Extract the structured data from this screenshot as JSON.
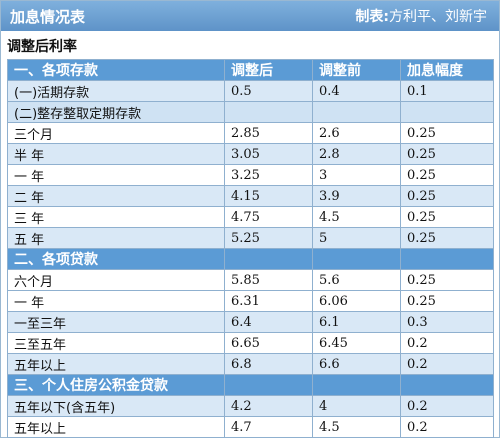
{
  "header": {
    "title": "加息情况表",
    "credit_label": "制表:",
    "credit_name": "方利平、刘新宇"
  },
  "heading": "调整后利率",
  "colors": {
    "header_bar": "#6aa1d4",
    "group_row": "#5b9bd5",
    "alt_row": "#d9e8f6",
    "border": "#8fb0cf"
  },
  "rows": [
    {
      "type": "head",
      "label": "一、各项存款",
      "after": "调整后",
      "before": "调整前",
      "delta": "加息幅度"
    },
    {
      "type": "alt",
      "label": "(一)活期存款",
      "after": "0.5",
      "before": "0.4",
      "delta": "0.1"
    },
    {
      "type": "sub",
      "label": "(二)整存整取定期存款",
      "after": "",
      "before": "",
      "delta": ""
    },
    {
      "type": "plain",
      "label": "三个月",
      "after": "2.85",
      "before": "2.6",
      "delta": "0.25"
    },
    {
      "type": "alt",
      "label": "半  年",
      "after": "3.05",
      "before": "2.8",
      "delta": "0.25"
    },
    {
      "type": "plain",
      "label": "一  年",
      "after": "3.25",
      "before": "3",
      "delta": "0.25"
    },
    {
      "type": "alt",
      "label": "二  年",
      "after": "4.15",
      "before": "3.9",
      "delta": "0.25"
    },
    {
      "type": "plain",
      "label": "三  年",
      "after": "4.75",
      "before": "4.5",
      "delta": "0.25"
    },
    {
      "type": "alt",
      "label": "五  年",
      "after": "5.25",
      "before": "5",
      "delta": "0.25"
    },
    {
      "type": "head",
      "label": "二、各项贷款",
      "after": "",
      "before": "",
      "delta": ""
    },
    {
      "type": "plain",
      "label": "六个月",
      "after": "5.85",
      "before": "5.6",
      "delta": "0.25"
    },
    {
      "type": "plain",
      "label": "一  年",
      "after": "6.31",
      "before": "6.06",
      "delta": "0.25"
    },
    {
      "type": "alt",
      "label": "一至三年",
      "after": "6.4",
      "before": "6.1",
      "delta": "0.3"
    },
    {
      "type": "plain",
      "label": "三至五年",
      "after": "6.65",
      "before": "6.45",
      "delta": "0.2"
    },
    {
      "type": "alt",
      "label": "五年以上",
      "after": "6.8",
      "before": "6.6",
      "delta": "0.2"
    },
    {
      "type": "head",
      "label": "三、个人住房公积金贷款",
      "after": "",
      "before": "",
      "delta": ""
    },
    {
      "type": "alt",
      "label": "五年以下(含五年)",
      "after": "4.2",
      "before": "4",
      "delta": "0.2"
    },
    {
      "type": "plain",
      "label": "五年以上",
      "after": "4.7",
      "before": "4.5",
      "delta": "0.2"
    }
  ]
}
